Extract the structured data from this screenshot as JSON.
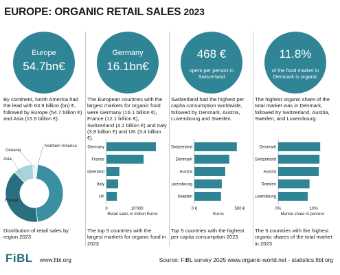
{
  "title": {
    "main": "EUROPE: ORGANIC RETAIL SALES",
    "year": "2023"
  },
  "columns": [
    {
      "circle_label": "Europe",
      "circle_value": "54.7bn€",
      "description": "By continent, North America had the lead with 63.9 billion (bn) €, followed by Europe (54.7 billion €) and Asia (15.5 billion €).",
      "caption": "Distribution of retail sales by region 2023"
    },
    {
      "circle_label": "Germany",
      "circle_value": "16.1bn€",
      "description": "The European countries with the largest markets for organic food were Germany (16.1 billion €), France (12.1 billion €), Switzerland (4.2 billion €) and Italy (3.8 billion €) and UK (3.4 billion €).",
      "caption": "The top 5 countries with the largest markets for organic food in 2023"
    },
    {
      "circle_value": "468 €",
      "circle_sub": "spent per person in Switzerland",
      "description": "Switzerland had the highest per capita consumption worldwide, followed by Denmark, Austria, Luxembourg and Sweden.",
      "caption": "Top 5 countries with the highest per capita consumption 2023"
    },
    {
      "circle_value": "11.8%",
      "circle_sub": "of the food market in Denmark is organic",
      "description": "The highest organic share of the total market was in Denmark, followed by Switzerland, Austria, Sweden, and Luxembourg.",
      "caption": "The 5 countries with the highest organic shares of the total market in 2023"
    }
  ],
  "chart_data": [
    {
      "type": "pie",
      "categories": [
        "North America",
        "Europe",
        "Asia",
        "Oceania",
        "Other"
      ],
      "values": [
        63.9,
        54.7,
        15.5,
        1.8,
        2.0
      ],
      "colors": [
        "#3a8fa0",
        "#2a6f7e",
        "#a8d3dc",
        "#d4e9ee",
        "#eaf4f6"
      ],
      "labels_shown": [
        "Northern America",
        "Europe",
        "Asia",
        "Oceania"
      ]
    },
    {
      "type": "bar",
      "orientation": "horizontal",
      "categories": [
        "Germany",
        "France",
        "Switzerland",
        "Italy",
        "UK"
      ],
      "values": [
        16100,
        12100,
        4200,
        3800,
        3400
      ],
      "xlim": [
        0,
        17000
      ],
      "ticks": [
        "0",
        "10'000"
      ],
      "xlabel": "Retail sales in million Euros",
      "color": "#2f8596"
    },
    {
      "type": "bar",
      "orientation": "horizontal",
      "categories": [
        "Switzerland",
        "Denmark",
        "Austria",
        "Luxembourg",
        "Sweden"
      ],
      "values": [
        468,
        384,
        340,
        302,
        294
      ],
      "xlim": [
        0,
        530
      ],
      "ticks": [
        "0 €",
        "500 €"
      ],
      "xlabel": "Euros",
      "color": "#2f8596"
    },
    {
      "type": "bar",
      "orientation": "horizontal",
      "categories": [
        "Denmark",
        "Switzerland",
        "Austria",
        "Sweden",
        "Luxembourg"
      ],
      "values": [
        11.8,
        11.6,
        11.4,
        8.8,
        8.3
      ],
      "xlim": [
        0,
        13.5
      ],
      "ticks": [
        "0%",
        "10%"
      ],
      "xlabel": "Market share in percent",
      "color": "#2f8596"
    }
  ],
  "footer": {
    "logo": "FiBL",
    "site": "www.fibl.org",
    "source": "Source: FiBL survey 2025 www.organic-world.net - statistics.fibl.org"
  }
}
